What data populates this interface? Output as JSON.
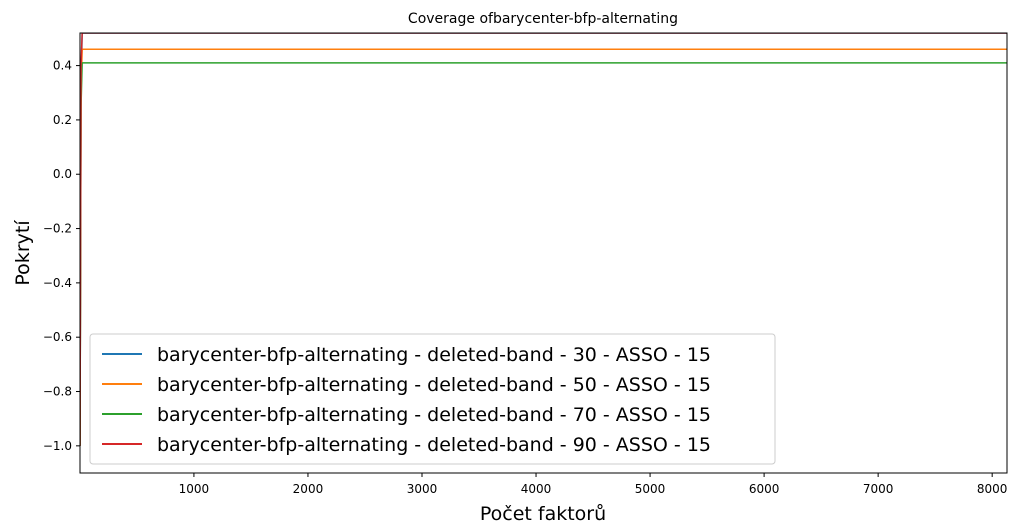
{
  "chart_data": {
    "type": "line",
    "title": "Coverage ofbarycenter-bfp-alternating",
    "xlabel": "Počet faktorů",
    "ylabel": "Pokrytí",
    "xlim": [
      1,
      8130
    ],
    "ylim": [
      -1.1,
      0.52
    ],
    "xticks": [
      1000,
      2000,
      3000,
      4000,
      5000,
      6000,
      7000,
      8000
    ],
    "yticks": [
      0.4,
      0.2,
      0.0,
      -0.2,
      -0.4,
      -0.6,
      -0.8,
      -1.0
    ],
    "ytick_labels": [
      "0.4",
      "0.2",
      "0.0",
      "−0.2",
      "−0.4",
      "−0.6",
      "−0.8",
      "−1.0"
    ],
    "grid": false,
    "legend_position": "lower-left",
    "series": [
      {
        "name": "barycenter-bfp-alternating - deleted-band - 30 - ASSO - 15",
        "color": "#1f77b4",
        "x": [
          1,
          10,
          20,
          8130
        ],
        "y": [
          -1.0,
          0.3,
          0.52,
          0.52
        ]
      },
      {
        "name": "barycenter-bfp-alternating - deleted-band - 50 - ASSO - 15",
        "color": "#ff7f0e",
        "x": [
          1,
          10,
          20,
          8130
        ],
        "y": [
          -1.0,
          0.3,
          0.46,
          0.46
        ]
      },
      {
        "name": "barycenter-bfp-alternating - deleted-band - 70 - ASSO - 15",
        "color": "#2ca02c",
        "x": [
          1,
          10,
          20,
          8130
        ],
        "y": [
          -1.0,
          0.25,
          0.41,
          0.41
        ]
      },
      {
        "name": "barycenter-bfp-alternating - deleted-band - 90 - ASSO - 15",
        "color": "#d62728",
        "x": [
          1,
          10,
          20,
          8130
        ],
        "y": [
          -1.0,
          0.4,
          0.52,
          0.52
        ]
      }
    ]
  }
}
